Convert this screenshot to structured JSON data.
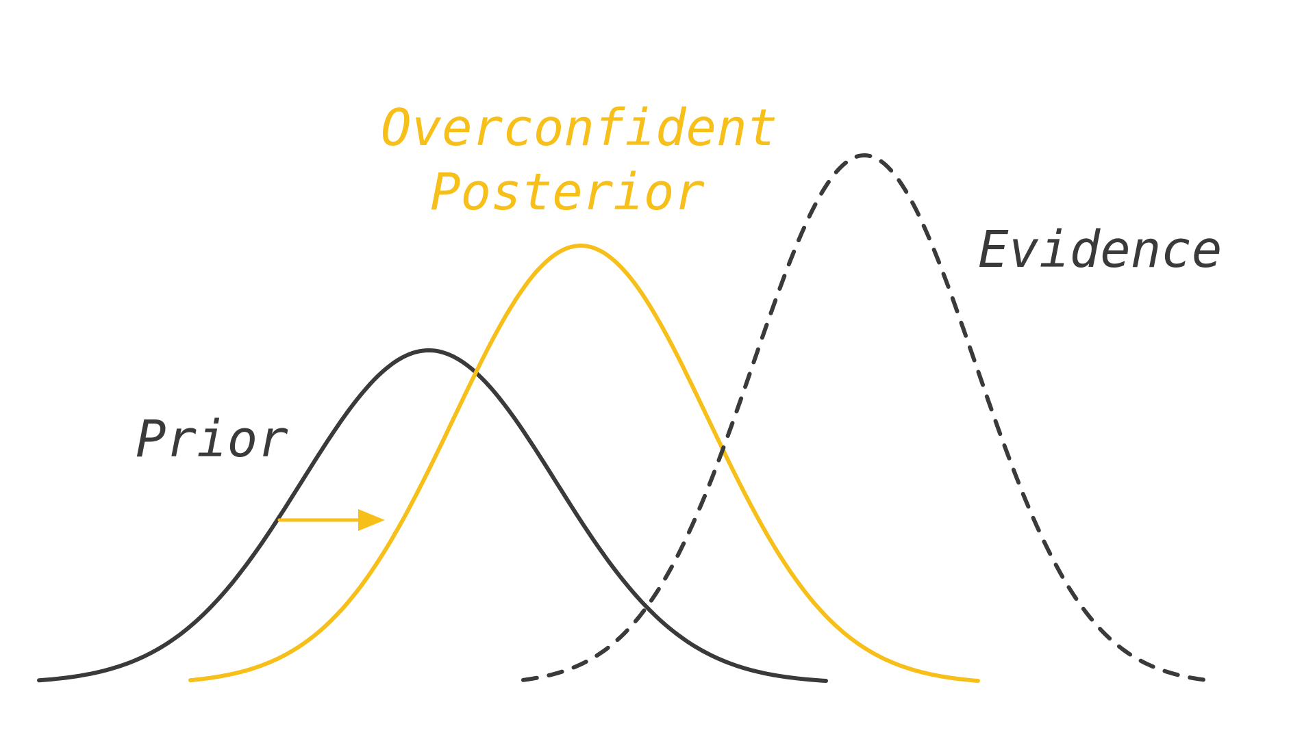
{
  "labels": {
    "prior": "Prior",
    "posterior_line1": "Overconfident",
    "posterior_line2": "Posterior",
    "evidence": "Evidence"
  },
  "colors": {
    "dark": "#3a3a3a",
    "accent": "#f7bf1a",
    "background": "#ffffff"
  },
  "icons": {
    "shift_arrow": "arrow-right"
  }
}
